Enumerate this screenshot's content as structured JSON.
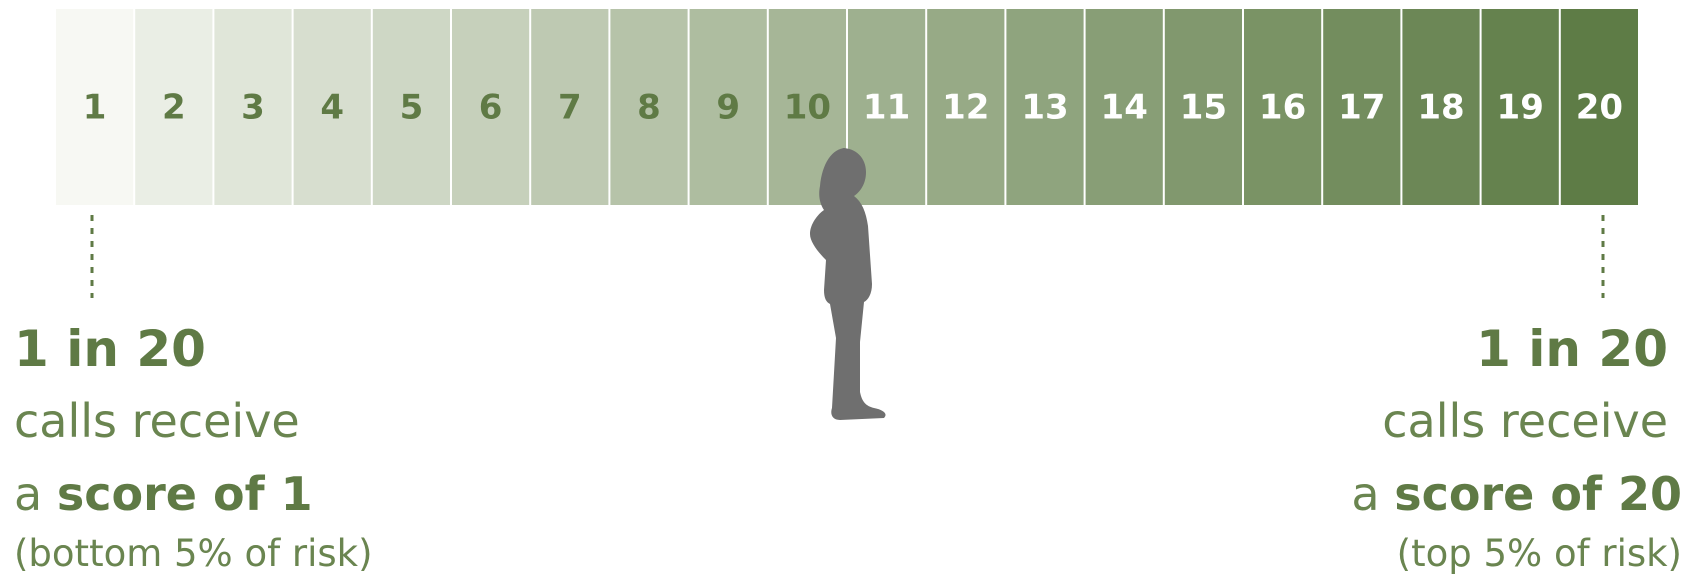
{
  "scale": {
    "cells": [
      "1",
      "2",
      "3",
      "4",
      "5",
      "6",
      "7",
      "8",
      "9",
      "10",
      "11",
      "12",
      "13",
      "14",
      "15",
      "16",
      "17",
      "18",
      "19",
      "20"
    ]
  },
  "left": {
    "headline": "1 in 20",
    "line1": "calls receive",
    "line2_prefix": "a",
    "line2_bold": "score of 1",
    "note": "(bottom 5% of risk)"
  },
  "right": {
    "headline": "1 in 20",
    "line1": "calls receive",
    "line2_prefix": "a",
    "line2_bold": "score of 20",
    "note": "(top 5% of risk)"
  }
}
